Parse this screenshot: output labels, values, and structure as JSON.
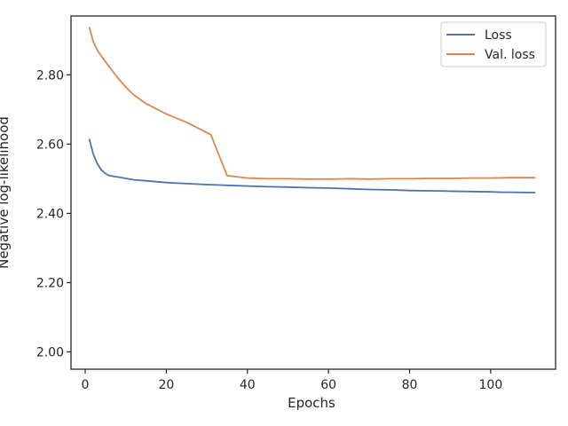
{
  "chart_data": {
    "type": "line",
    "title": "",
    "xlabel": "Epochs",
    "ylabel": "Negative log-likelihood",
    "xlim": [
      -3.5,
      116
    ],
    "ylim": [
      1.95,
      2.97
    ],
    "xticks": [
      0,
      20,
      40,
      60,
      80,
      100
    ],
    "xtick_labels": [
      "0",
      "20",
      "40",
      "60",
      "80",
      "100"
    ],
    "yticks": [
      2.0,
      2.2,
      2.4,
      2.6,
      2.8
    ],
    "ytick_labels": [
      "2.00",
      "2.20",
      "2.40",
      "2.60",
      "2.80"
    ],
    "grid": false,
    "legend": "top-right",
    "series": [
      {
        "name": "Loss",
        "color": "#4c72b0",
        "x": [
          1,
          2,
          3,
          4,
          5,
          6,
          7,
          8,
          10,
          12,
          15,
          20,
          25,
          30,
          35,
          40,
          45,
          50,
          55,
          60,
          65,
          70,
          75,
          80,
          85,
          90,
          95,
          100,
          103,
          105,
          111
        ],
        "y": [
          2.615,
          2.571,
          2.543,
          2.525,
          2.515,
          2.509,
          2.507,
          2.505,
          2.501,
          2.497,
          2.494,
          2.489,
          2.486,
          2.483,
          2.481,
          2.479,
          2.477,
          2.476,
          2.474,
          2.473,
          2.471,
          2.469,
          2.468,
          2.466,
          2.465,
          2.464,
          2.463,
          2.462,
          2.461,
          2.461,
          2.46
        ]
      },
      {
        "name": "Val. loss",
        "color": "#dd8452",
        "x": [
          1,
          2,
          3,
          4,
          6,
          8,
          10,
          12,
          15,
          20,
          25,
          28,
          31,
          35,
          40,
          45,
          50,
          55,
          60,
          65,
          70,
          75,
          80,
          85,
          90,
          95,
          100,
          105,
          111
        ],
        "y": [
          2.938,
          2.896,
          2.871,
          2.854,
          2.822,
          2.792,
          2.765,
          2.742,
          2.717,
          2.687,
          2.663,
          2.645,
          2.627,
          2.509,
          2.502,
          2.5,
          2.5,
          2.499,
          2.499,
          2.5,
          2.499,
          2.5,
          2.5,
          2.501,
          2.501,
          2.502,
          2.502,
          2.503,
          2.503
        ]
      }
    ]
  }
}
